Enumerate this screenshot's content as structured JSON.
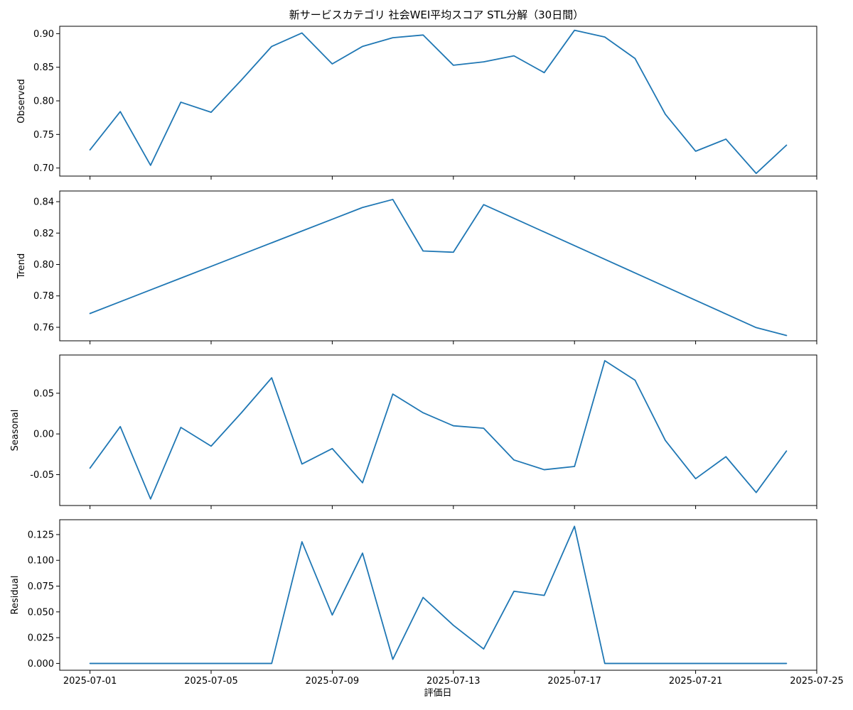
{
  "chart_data": {
    "type": "line",
    "title": "新サービスカテゴリ 社会WEI平均スコア STL分解（30日間）",
    "xlabel": "評価日",
    "x": [
      "2025-07-01",
      "2025-07-02",
      "2025-07-03",
      "2025-07-04",
      "2025-07-05",
      "2025-07-06",
      "2025-07-07",
      "2025-07-08",
      "2025-07-09",
      "2025-07-10",
      "2025-07-11",
      "2025-07-12",
      "2025-07-13",
      "2025-07-14",
      "2025-07-15",
      "2025-07-16",
      "2025-07-17",
      "2025-07-18",
      "2025-07-19",
      "2025-07-20",
      "2025-07-21",
      "2025-07-22",
      "2025-07-23",
      "2025-07-24"
    ],
    "x_ticks": [
      "2025-07-01",
      "2025-07-05",
      "2025-07-09",
      "2025-07-13",
      "2025-07-17",
      "2025-07-21",
      "2025-07-25"
    ],
    "xlim": [
      "2025-06-30",
      "2025-07-25"
    ],
    "line_color": "#1f77b4",
    "panels": [
      {
        "ylabel": "Observed",
        "ylim": [
          0.688,
          0.911
        ],
        "yticks": [
          "0.70",
          "0.75",
          "0.80",
          "0.85",
          "0.90"
        ],
        "values": [
          0.727,
          0.784,
          0.704,
          0.798,
          0.783,
          0.831,
          0.881,
          0.901,
          0.855,
          0.881,
          0.894,
          0.898,
          0.853,
          0.858,
          0.867,
          0.842,
          0.905,
          0.895,
          0.863,
          0.78,
          0.725,
          0.743,
          0.692,
          0.734
        ]
      },
      {
        "ylabel": "Trend",
        "ylim": [
          0.7514,
          0.8468
        ],
        "yticks": [
          "0.76",
          "0.78",
          "0.80",
          "0.82",
          "0.84"
        ],
        "values": [
          0.7688,
          0.7763,
          0.7838,
          0.7913,
          0.7988,
          0.8063,
          0.8138,
          0.8213,
          0.8288,
          0.8363,
          0.8414,
          0.8086,
          0.8078,
          0.8381,
          0.8294,
          0.8207,
          0.812,
          0.8033,
          0.7946,
          0.7859,
          0.7772,
          0.7685,
          0.7598,
          0.7548
        ]
      },
      {
        "ylabel": "Seasonal",
        "ylim": [
          -0.088,
          0.097
        ],
        "yticks": [
          "-0.05",
          "0.00",
          "0.05"
        ],
        "values": [
          -0.042,
          0.009,
          -0.08,
          0.008,
          -0.015,
          0.026,
          0.069,
          -0.037,
          -0.018,
          -0.06,
          0.049,
          0.026,
          0.01,
          0.007,
          -0.032,
          -0.044,
          -0.04,
          0.09,
          0.066,
          -0.008,
          -0.055,
          -0.028,
          -0.072,
          -0.021
        ]
      },
      {
        "ylabel": "Residual",
        "ylim": [
          -0.0066,
          0.1394
        ],
        "yticks": [
          "0.000",
          "0.025",
          "0.050",
          "0.075",
          "0.100",
          "0.125"
        ],
        "values": [
          0,
          0,
          0,
          0,
          0,
          0,
          0,
          0.118,
          0.047,
          0.107,
          0.004,
          0.064,
          0.037,
          0.014,
          0.07,
          0.066,
          0.133,
          0,
          0,
          0,
          0,
          0,
          0,
          0
        ]
      }
    ]
  }
}
